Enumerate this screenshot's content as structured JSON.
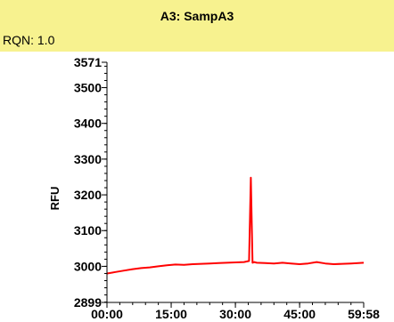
{
  "panel": {
    "title": "A3: SampA3",
    "rqn": "RQN: 1.0"
  },
  "colors": {
    "header_bg": "#f7f28f",
    "trace": "#ff0000"
  },
  "chart_data": {
    "type": "line",
    "title": "",
    "xlabel": "",
    "ylabel": "RFU",
    "xlim": [
      0,
      59.967
    ],
    "ylim": [
      2899,
      3571
    ],
    "x_ticks": [
      {
        "value": 0,
        "label": "00:00"
      },
      {
        "value": 15,
        "label": "15:00"
      },
      {
        "value": 30,
        "label": "30:00"
      },
      {
        "value": 45,
        "label": "45:00"
      },
      {
        "value": 59.967,
        "label": "59:58"
      }
    ],
    "y_ticks": [
      {
        "value": 2899,
        "label": "2899"
      },
      {
        "value": 3000,
        "label": "3000"
      },
      {
        "value": 3100,
        "label": "3100"
      },
      {
        "value": 3200,
        "label": "3200"
      },
      {
        "value": 3300,
        "label": "3300"
      },
      {
        "value": 3400,
        "label": "3400"
      },
      {
        "value": 3500,
        "label": "3500"
      },
      {
        "value": 3571,
        "label": "3571"
      }
    ],
    "grid": false,
    "series": [
      {
        "x": [
          0,
          2,
          4,
          6,
          8,
          10,
          12,
          14,
          16,
          18,
          20,
          22,
          24,
          26,
          28,
          30,
          32,
          33.2,
          33.6,
          34.0,
          34.4,
          35,
          37,
          39,
          41,
          43,
          45,
          47,
          49,
          51,
          53,
          55,
          57,
          59.967
        ],
        "y": [
          2980,
          2984,
          2988,
          2992,
          2995,
          2997,
          3000,
          3003,
          3005,
          3004,
          3006,
          3007,
          3008,
          3009,
          3010,
          3011,
          3012,
          3015,
          3248,
          3010,
          3012,
          3010,
          3009,
          3008,
          3010,
          3008,
          3006,
          3008,
          3012,
          3008,
          3006,
          3007,
          3008,
          3010
        ]
      }
    ]
  }
}
